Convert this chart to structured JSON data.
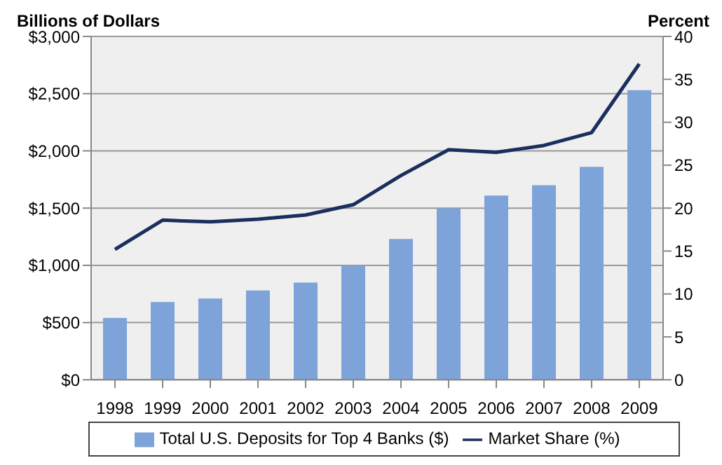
{
  "chart_data": {
    "type": "bar",
    "categories": [
      "1998",
      "1999",
      "2000",
      "2001",
      "2002",
      "2003",
      "2004",
      "2005",
      "2006",
      "2007",
      "2008",
      "2009"
    ],
    "series": [
      {
        "name": "Total U.S. Deposits for Top 4 Banks ($)",
        "color": "#7ea3d9",
        "values": [
          540,
          680,
          710,
          780,
          850,
          1000,
          1230,
          1500,
          1610,
          1700,
          1860,
          2530
        ]
      },
      {
        "name": "Market Share (%)",
        "type": "line",
        "axis": "y2",
        "color": "#1a2f5e",
        "values": [
          15.2,
          18.6,
          18.4,
          18.7,
          19.2,
          20.4,
          23.8,
          26.8,
          26.5,
          27.3,
          28.8,
          36.8
        ]
      }
    ],
    "ylabel": "Billions of Dollars",
    "y2label": "Percent",
    "ylim": [
      0,
      3000
    ],
    "yticks": [
      {
        "value": 0,
        "label": "$0"
      },
      {
        "value": 500,
        "label": "$500"
      },
      {
        "value": 1000,
        "label": "$1,000"
      },
      {
        "value": 1500,
        "label": "$1,500"
      },
      {
        "value": 2000,
        "label": "$2,000"
      },
      {
        "value": 2500,
        "label": "$2,500"
      },
      {
        "value": 3000,
        "label": "$3,000"
      }
    ],
    "y2lim": [
      0,
      40
    ],
    "y2ticks": [
      0,
      5,
      10,
      15,
      20,
      25,
      30,
      35,
      40
    ],
    "grid": "y",
    "legend": "bottom",
    "marker": "none"
  }
}
